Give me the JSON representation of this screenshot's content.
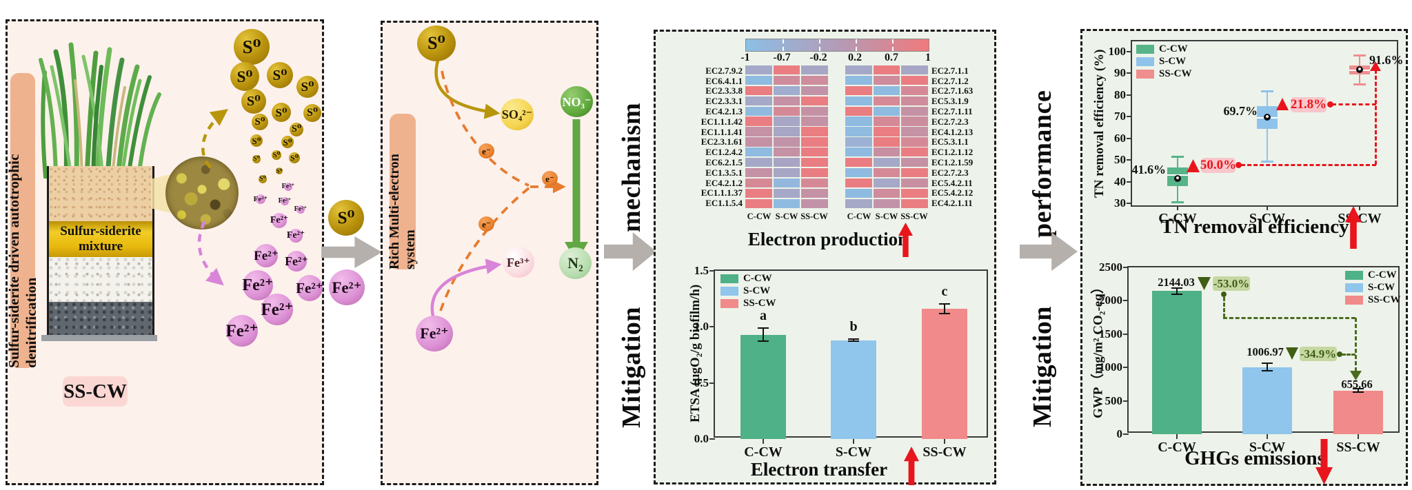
{
  "panel1": {
    "side_label": "Sulfur-siderite driven autotrophic denitrification",
    "tank_layer_label_line1": "Sulfur-siderite",
    "tank_layer_label_line2": "mixture",
    "system_label": "SS-CW",
    "particles": {
      "s0": "S⁰",
      "fe2": "Fe²⁺"
    },
    "s0_bubbles": [
      [
        354,
        37,
        26
      ],
      [
        344,
        80,
        21
      ],
      [
        395,
        78,
        19
      ],
      [
        435,
        95,
        16
      ],
      [
        357,
        116,
        18
      ],
      [
        397,
        132,
        14
      ],
      [
        442,
        133,
        13
      ],
      [
        366,
        146,
        12
      ],
      [
        419,
        157,
        10
      ],
      [
        361,
        173,
        9
      ],
      [
        406,
        175,
        9
      ],
      [
        390,
        194,
        7
      ],
      [
        361,
        200,
        6
      ],
      [
        416,
        198,
        8
      ],
      [
        394,
        217,
        5
      ],
      [
        370,
        229,
        6
      ]
    ],
    "fe2_bubbles": [
      [
        407,
        240,
        6
      ],
      [
        367,
        258,
        7
      ],
      [
        402,
        261,
        6
      ],
      [
        425,
        273,
        6
      ],
      [
        394,
        289,
        11
      ],
      [
        418,
        311,
        10
      ],
      [
        375,
        340,
        17
      ],
      [
        419,
        348,
        15
      ],
      [
        363,
        383,
        22
      ],
      [
        438,
        387,
        19
      ],
      [
        391,
        418,
        23
      ],
      [
        340,
        449,
        23
      ]
    ]
  },
  "connector1": {
    "s0": "S⁰",
    "fe2": "Fe²⁺"
  },
  "panel2": {
    "side_label": "Rich Multi-electron system",
    "nodes": {
      "s0": "S⁰",
      "so4": "SO₄²⁻",
      "no3": "NO₃⁻",
      "n2": "N₂",
      "fe3": "Fe³⁺",
      "fe2": "Fe²⁺",
      "e": "e⁻"
    }
  },
  "connector2": {
    "word1": "Mitigation",
    "word2": "mechanism"
  },
  "connector3": {
    "word1": "Mitigation",
    "word2": "performance"
  },
  "chart_data": [
    {
      "type": "heatmap",
      "title": "Electron production",
      "colorbar_ticks": [
        "-1",
        "-0.7",
        "-0.2",
        "0.2",
        "0.7",
        "1"
      ],
      "colorbar_colors": {
        "low": "#8cbfe6",
        "mid": "#b39bb7",
        "high": "#f07a7c"
      },
      "columns": [
        "C-CW",
        "S-CW",
        "SS-CW"
      ],
      "left_rows": [
        "EC2.7.9.2",
        "EC6.4.1.1",
        "EC2.3.3.8",
        "EC2.3.3.1",
        "EC4.2.1.3",
        "EC1.1.1.42",
        "EC1.1.1.41",
        "EC2.3.1.61",
        "EC1.2.4.2",
        "EC6.2.1.5",
        "EC1.3.5.1",
        "EC4.2.1.2",
        "EC1.1.1.37",
        "EC1.1.5.4"
      ],
      "left_values": [
        [
          -0.35,
          0.9,
          -0.3
        ],
        [
          -0.9,
          0.45,
          0.45
        ],
        [
          0.9,
          -0.5,
          0.25
        ],
        [
          -0.35,
          0.3,
          0.9
        ],
        [
          -0.85,
          0.55,
          0.3
        ],
        [
          0.9,
          -0.3,
          0.3
        ],
        [
          0.3,
          -0.3,
          0.9
        ],
        [
          0.3,
          0.25,
          0.9
        ],
        [
          -0.9,
          0.3,
          0.9
        ],
        [
          -0.35,
          -0.25,
          0.9
        ],
        [
          0.3,
          -0.3,
          0.9
        ],
        [
          0.55,
          -0.8,
          0.55
        ],
        [
          0.9,
          -0.35,
          0.3
        ],
        [
          0.9,
          -0.9,
          0.25
        ]
      ],
      "right_rows": [
        "EC2.7.1.1",
        "EC2.7.1.2",
        "EC2.7.1.63",
        "EC5.3.1.9",
        "EC2.7.1.11",
        "EC2.7.2.3",
        "EC4.1.2.13",
        "EC5.3.1.1",
        "EC1.2.1.12",
        "EC1.2.1.59",
        "EC2.7.2.3",
        "EC5.4.2.11",
        "EC5.4.2.12",
        "EC4.2.1.11"
      ],
      "right_values": [
        [
          -0.35,
          0.9,
          -0.3
        ],
        [
          -0.9,
          0.45,
          0.9
        ],
        [
          0.9,
          -0.9,
          0.55
        ],
        [
          -0.9,
          0.55,
          0.45
        ],
        [
          0.9,
          -0.9,
          0.3
        ],
        [
          -0.9,
          0.55,
          0.4
        ],
        [
          -0.9,
          0.9,
          0.3
        ],
        [
          -0.6,
          0.9,
          0.55
        ],
        [
          -0.9,
          0.35,
          0.9
        ],
        [
          0.9,
          -0.35,
          0.3
        ],
        [
          -0.9,
          0.55,
          0.9
        ],
        [
          0.9,
          -0.35,
          0.35
        ],
        [
          -0.9,
          0.45,
          0.9
        ],
        [
          -0.35,
          0.25,
          0.9
        ]
      ]
    },
    {
      "type": "bar",
      "title": "Electron transfer",
      "ylabel": "ETSA (μgO₂/g biofilm/h)",
      "ylim": [
        0,
        1.5
      ],
      "yticks": [
        "0.0",
        "0.5",
        "1.0",
        "1.5"
      ],
      "categories": [
        "C-CW",
        "S-CW",
        "SS-CW"
      ],
      "values": [
        0.93,
        0.88,
        1.16
      ],
      "errors": [
        0.065,
        0.015,
        0.05
      ],
      "sig_letters": [
        "a",
        "b",
        "c"
      ],
      "legend": [
        "C-CW",
        "S-CW",
        "SS-CW"
      ],
      "colors": [
        "#4fb187",
        "#90c5ec",
        "#f18a8a"
      ]
    },
    {
      "type": "box",
      "title": "TN removal efficiency",
      "ylabel": "TN removal efficiency (%)",
      "yticks": [
        "30",
        "40",
        "50",
        "60",
        "70",
        "80",
        "90",
        "100"
      ],
      "ylim": [
        23.6,
        100.6
      ],
      "categories": [
        "C-CW",
        "S-CW",
        "SS-CW"
      ],
      "legend": [
        "C-CW",
        "S-CW",
        "SS-CW"
      ],
      "colors": [
        "#57b488",
        "#8fc3eb",
        "#ef8e8e"
      ],
      "boxes": [
        {
          "mean_label": "41.6%",
          "mean": 41.6,
          "median": 43.2,
          "q1": 38,
          "q3": 46.5,
          "lo": 30.5,
          "hi": 51.5
        },
        {
          "mean_label": "69.7%",
          "mean": 69.7,
          "median": 69.5,
          "q1": 64.5,
          "q3": 75,
          "lo": 49.5,
          "hi": 82
        },
        {
          "mean_label": "91.6%",
          "mean": 91.6,
          "median": 91.5,
          "q1": 89.5,
          "q3": 93.5,
          "lo": 85,
          "hi": 98.5
        }
      ],
      "increase_badges": [
        "50.0%",
        "21.8%"
      ]
    },
    {
      "type": "bar",
      "title": "GHGs emissions",
      "ylabel": "GWP（mg/m² CO₂-eq）",
      "ylim": [
        0,
        2500
      ],
      "yticks": [
        "0",
        "500",
        "1000",
        "1500",
        "2000",
        "2500"
      ],
      "categories": [
        "C-CW",
        "S-CW",
        "SS-CW"
      ],
      "values": [
        2144.03,
        1006.97,
        655.66
      ],
      "value_labels": [
        "2144.03",
        "1006.97",
        "655.66"
      ],
      "errors": [
        60,
        70,
        40
      ],
      "legend": [
        "C-CW",
        "S-CW",
        "SS-CW"
      ],
      "colors": [
        "#4fb187",
        "#90c5ec",
        "#f18a8a"
      ],
      "decrease_badges": [
        "-53.0%",
        "-34.9%"
      ]
    }
  ]
}
